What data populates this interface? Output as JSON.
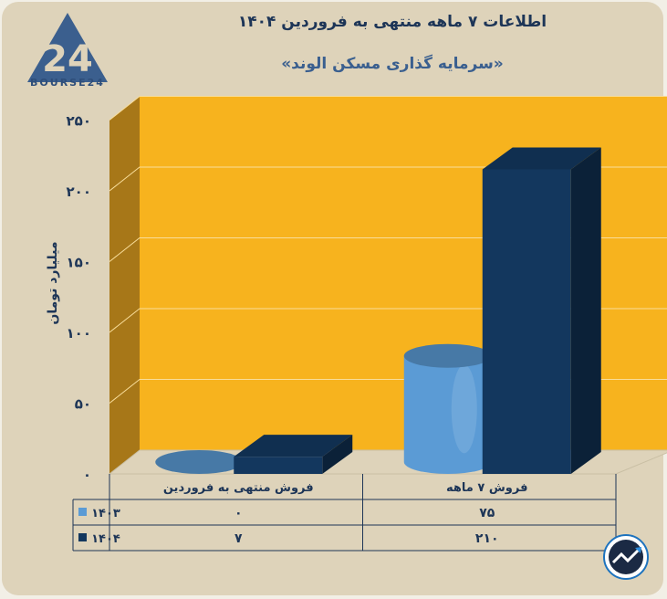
{
  "header": {
    "title": "اطلاعات ۷ ماهه منتهی به فروردین ۱۴۰۴",
    "subtitle": "«سرمایه گذاری مسکن الوند»"
  },
  "logo": {
    "text": "BOURSE24",
    "mark": "24"
  },
  "chart_data": {
    "type": "bar",
    "style": "3d",
    "categories": [
      "فروش ۷ ماهه",
      "فروش منتهی به  فروردین"
    ],
    "series": [
      {
        "name": "۱۴۰۳",
        "values": [
          75,
          0
        ],
        "color": "#5b9bd5",
        "shape": "cylinder"
      },
      {
        "name": "۱۴۰۴",
        "values": [
          210,
          7
        ],
        "color": "#13375e",
        "shape": "box"
      }
    ],
    "ylabel": "میلیارد تومان",
    "ylim": [
      0,
      250
    ],
    "yticks": [
      0,
      50,
      100,
      150,
      200,
      250
    ],
    "ytick_labels": [
      "۰",
      "۵۰",
      "۱۰۰",
      "۱۵۰",
      "۲۰۰",
      "۲۵۰"
    ],
    "table": {
      "rows": [
        {
          "label": "۱۴۰۳",
          "cells": [
            "۷۵",
            "۰"
          ]
        },
        {
          "label": "۱۴۰۴",
          "cells": [
            "۲۱۰",
            "۷"
          ]
        }
      ]
    },
    "grid": true,
    "wall_color": "#f7b31e",
    "background": "#ded3ba"
  }
}
